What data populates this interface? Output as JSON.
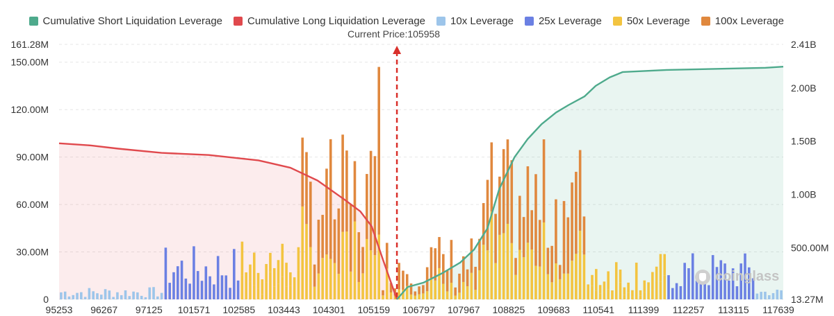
{
  "legend": [
    {
      "label": "Cumulative Short Liquidation Leverage",
      "color": "#4eaa8c"
    },
    {
      "label": "Cumulative Long Liquidation Leverage",
      "color": "#e0494d"
    },
    {
      "label": "10x Leverage",
      "color": "#9dc5ea"
    },
    {
      "label": "25x Leverage",
      "color": "#6b80e3"
    },
    {
      "label": "50x Leverage",
      "color": "#f3c440"
    },
    {
      "label": "100x Leverage",
      "color": "#e0883e"
    }
  ],
  "current_price_label": "Current Price:105958",
  "watermark": "coinglass",
  "chart_data": {
    "type": "bar",
    "title": "",
    "current_price": 105958,
    "x_tick_labels": [
      "95253",
      "96267",
      "97125",
      "101571",
      "102585",
      "103443",
      "104301",
      "105159",
      "106797",
      "107967",
      "108825",
      "109683",
      "110541",
      "111399",
      "112257",
      "113115",
      "117639"
    ],
    "left_axis": {
      "ticks": [
        "0",
        "30.00M",
        "60.00M",
        "90.00M",
        "120.00M",
        "150.00M",
        "161.28M"
      ],
      "ylim": [
        0,
        161.28
      ]
    },
    "right_axis": {
      "ticks": [
        "13.27M",
        "500.00M",
        "1.00B",
        "1.50B",
        "2.00B",
        "2.41B"
      ],
      "ylim": [
        0.01327,
        2.41
      ]
    },
    "bars": {
      "x_start": 95253,
      "x_end": 118200,
      "count": 180,
      "colors": {
        "10x": "#9dc5ea",
        "25x": "#6b80e3",
        "50x": "#f3c440",
        "100x": "#e0883e"
      },
      "segments": [
        {
          "bar_start": 0,
          "bar_end": 25,
          "leverage": "10x",
          "range_m": [
            1,
            8
          ]
        },
        {
          "bar_start": 26,
          "bar_end": 44,
          "leverage": "25x",
          "range_m": [
            5,
            34
          ]
        },
        {
          "bar_start": 45,
          "bar_end": 59,
          "leverage": "50x",
          "range_m": [
            10,
            40
          ]
        },
        {
          "bar_start": 60,
          "bar_end": 78,
          "leverage": "100x",
          "range_m": [
            20,
            105
          ]
        },
        {
          "bar_start": 79,
          "bar_end": 79,
          "leverage": "100x",
          "range_m": [
            147,
            147
          ]
        },
        {
          "bar_start": 80,
          "bar_end": 104,
          "leverage": "100x",
          "range_m": [
            5,
            42
          ]
        },
        {
          "bar_start": 105,
          "bar_end": 130,
          "leverage": "100x",
          "range_m": [
            20,
            102
          ]
        },
        {
          "bar_start": 131,
          "bar_end": 150,
          "leverage": "50x",
          "range_m": [
            5,
            30
          ]
        },
        {
          "bar_start": 151,
          "bar_end": 172,
          "leverage": "25x",
          "range_m": [
            5,
            30
          ]
        },
        {
          "bar_start": 173,
          "bar_end": 179,
          "leverage": "10x",
          "range_m": [
            2,
            7
          ]
        }
      ]
    },
    "series": [
      {
        "name": "Cumulative Long Liquidation Leverage",
        "color": "#e0494d",
        "x": [
          95253,
          96267,
          97125,
          98500,
          100000,
          101571,
          102585,
          103443,
          104301,
          104800,
          105159,
          105500,
          105958
        ],
        "y": [
          1.48,
          1.46,
          1.43,
          1.39,
          1.37,
          1.32,
          1.25,
          1.13,
          0.95,
          0.84,
          0.7,
          0.4,
          0.013
        ]
      },
      {
        "name": "Cumulative Short Liquidation Leverage",
        "color": "#4eaa8c",
        "x": [
          105958,
          106300,
          106797,
          107400,
          107967,
          108400,
          108825,
          109200,
          109683,
          110100,
          110541,
          111000,
          111399,
          111900,
          112257,
          112700,
          113115,
          114500,
          117639,
          118200
        ],
        "y": [
          0.013,
          0.13,
          0.17,
          0.26,
          0.36,
          0.48,
          0.68,
          1.05,
          1.35,
          1.52,
          1.66,
          1.77,
          1.84,
          1.92,
          2.02,
          2.1,
          2.15,
          2.17,
          2.19,
          2.2
        ]
      }
    ]
  }
}
